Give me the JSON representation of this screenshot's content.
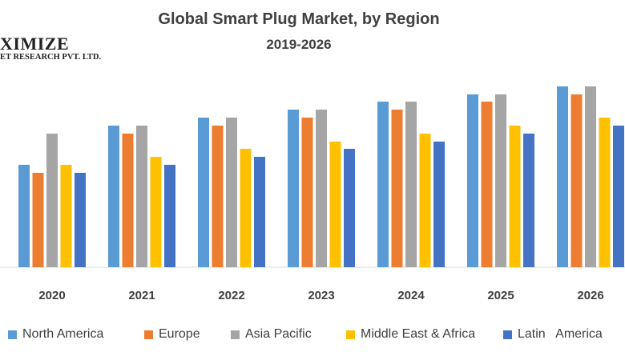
{
  "logo": {
    "line1": "XIMIZE",
    "line2": "ET RESEARCH PVT. LTD."
  },
  "chart_data": {
    "type": "bar",
    "title": "Global Smart Plug Market, by Region",
    "subtitle": "2019-2026",
    "xlabel": "",
    "ylabel": "",
    "ylim": [
      0,
      240
    ],
    "grid": false,
    "legend_position": "bottom",
    "categories": [
      "2020",
      "2021",
      "2022",
      "2023",
      "2024",
      "2025",
      "2026"
    ],
    "series": [
      {
        "name": "North America",
        "color": "#5B9BD5",
        "values": [
          128,
          177,
          187,
          197,
          207,
          216,
          226
        ]
      },
      {
        "name": "Europe",
        "color": "#ED7D31",
        "values": [
          118,
          167,
          177,
          187,
          197,
          207,
          216
        ]
      },
      {
        "name": "Asia Pacific",
        "color": "#A5A5A5",
        "values": [
          167,
          177,
          187,
          197,
          207,
          216,
          226
        ]
      },
      {
        "name": "Middle East & Africa",
        "color": "#FFC000",
        "values": [
          128,
          138,
          148,
          157,
          167,
          177,
          187
        ]
      },
      {
        "name": "Latin   America",
        "color": "#4472C4",
        "values": [
          118,
          128,
          138,
          148,
          157,
          167,
          177
        ]
      }
    ]
  }
}
